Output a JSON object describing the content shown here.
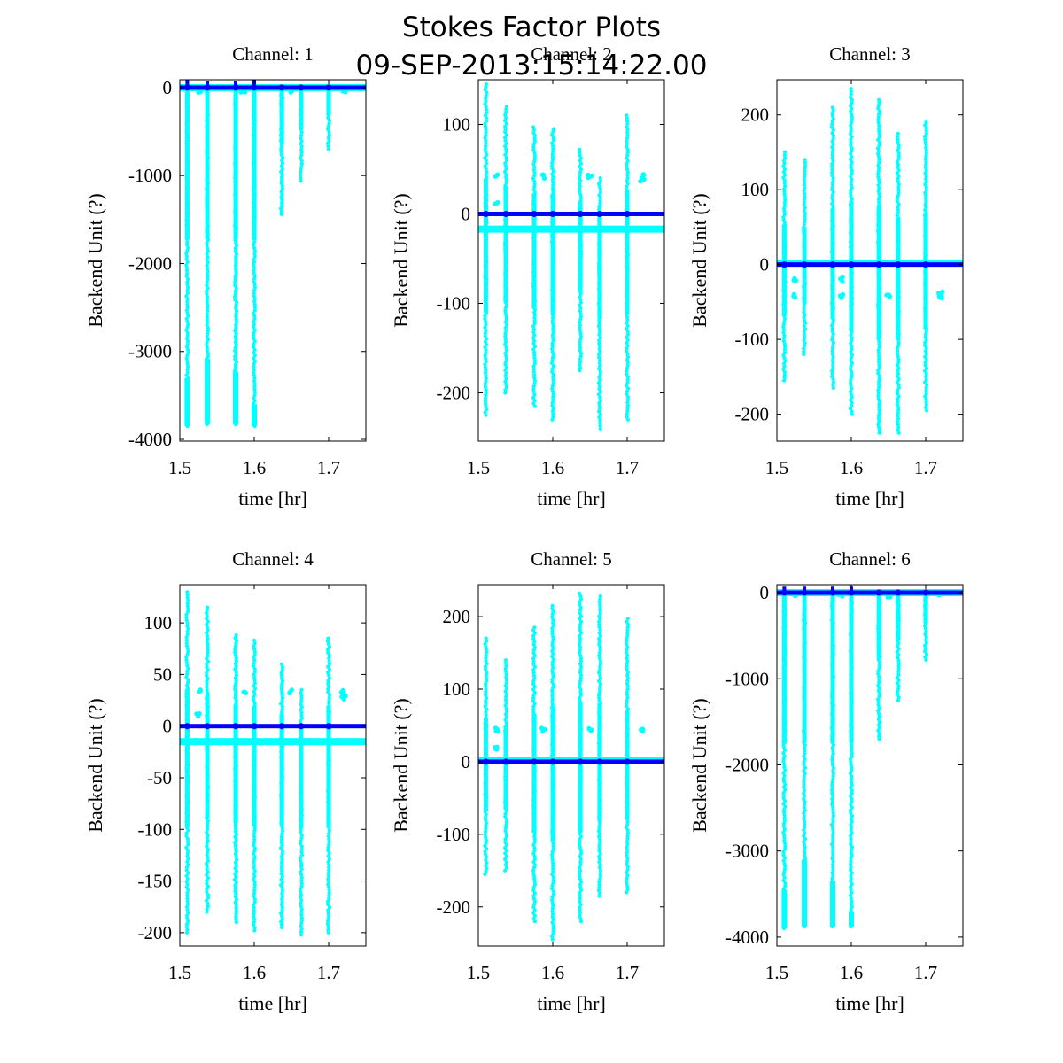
{
  "figure": {
    "title_line1": "Stokes Factor Plots",
    "title_line2": "09-SEP-2013:15:14:22.00",
    "colors": {
      "scatter_light": "#00ffff",
      "scatter_dark": "#0000ff",
      "axes": "#000000",
      "background": "#ffffff"
    }
  },
  "chart_data": [
    {
      "type": "scatter",
      "title": "Channel: 1",
      "xlabel": "time [hr]",
      "ylabel": "Backend Unit (?)",
      "xlim": [
        1.5,
        1.75
      ],
      "ylim": [
        -4020,
        90
      ],
      "xticks": [
        1.5,
        1.6,
        1.7
      ],
      "xtick_labels": [
        "1.5",
        "1.6",
        "1.7"
      ],
      "yticks": [
        0,
        -1000,
        -2000,
        -3000,
        -4000
      ],
      "ytick_labels": [
        "0",
        "-1000",
        "-2000",
        "-3000",
        "-4000"
      ],
      "grid": false,
      "series": [
        {
          "name": "cyan",
          "color": "#00ffff",
          "baseline": 0,
          "bursts": [
            [
              1.51,
              -3850,
              10
            ],
            [
              1.537,
              -3830,
              10
            ],
            [
              1.575,
              -3830,
              10
            ],
            [
              1.6,
              -3850,
              10
            ],
            [
              1.637,
              -1440,
              10
            ],
            [
              1.663,
              -1060,
              10
            ],
            [
              1.7,
              -700,
              10
            ]
          ],
          "dense_bands": [
            [
              1.51,
              -3300,
              -3850
            ],
            [
              1.537,
              -3080,
              -3830
            ],
            [
              1.575,
              -3230,
              -3830
            ],
            [
              1.6,
              -3600,
              -3850
            ]
          ],
          "clusters": [
            [
              1.525,
              -30
            ],
            [
              1.585,
              -30
            ],
            [
              1.65,
              -30
            ],
            [
              1.72,
              -30
            ]
          ]
        },
        {
          "name": "blue",
          "color": "#0000ff",
          "baseline": 0,
          "spikes": [
            [
              1.51,
              90
            ],
            [
              1.537,
              80
            ],
            [
              1.575,
              80
            ],
            [
              1.6,
              90
            ],
            [
              1.637,
              30
            ],
            [
              1.663,
              20
            ]
          ]
        }
      ]
    },
    {
      "type": "scatter",
      "title": "Channel: 2",
      "xlabel": "time [hr]",
      "ylabel": "Backend Unit (?)",
      "xlim": [
        1.5,
        1.75
      ],
      "ylim": [
        -254,
        150
      ],
      "xticks": [
        1.5,
        1.6,
        1.7
      ],
      "xtick_labels": [
        "1.5",
        "1.6",
        "1.7"
      ],
      "yticks": [
        100,
        0,
        -100,
        -200
      ],
      "ytick_labels": [
        "100",
        "0",
        "-100",
        "-200"
      ],
      "grid": false,
      "series": [
        {
          "name": "cyan",
          "color": "#00ffff",
          "baseline": -17,
          "bursts": [
            [
              1.51,
              -225,
              145
            ],
            [
              1.537,
              -200,
              120
            ],
            [
              1.575,
              -215,
              97
            ],
            [
              1.6,
              -230,
              95
            ],
            [
              1.637,
              -175,
              72
            ],
            [
              1.663,
              -240,
              40
            ],
            [
              1.7,
              -230,
              110
            ]
          ],
          "clusters": [
            [
              1.525,
              42
            ],
            [
              1.525,
              12
            ],
            [
              1.588,
              42
            ],
            [
              1.65,
              42
            ],
            [
              1.72,
              42
            ],
            [
              1.72,
              37
            ]
          ]
        },
        {
          "name": "blue",
          "color": "#0000ff",
          "baseline": 0,
          "spikes": []
        }
      ]
    },
    {
      "type": "scatter",
      "title": "Channel: 3",
      "xlabel": "time [hr]",
      "ylabel": "Backend Unit (?)",
      "xlim": [
        1.5,
        1.75
      ],
      "ylim": [
        -236,
        247
      ],
      "xticks": [
        1.5,
        1.6,
        1.7
      ],
      "xtick_labels": [
        "1.5",
        "1.6",
        "1.7"
      ],
      "yticks": [
        200,
        100,
        0,
        -100,
        -200
      ],
      "ytick_labels": [
        "200",
        "100",
        "0",
        "-100",
        "-200"
      ],
      "grid": false,
      "series": [
        {
          "name": "cyan",
          "color": "#00ffff",
          "baseline": 2,
          "bursts": [
            [
              1.51,
              -155,
              150
            ],
            [
              1.537,
              -120,
              140
            ],
            [
              1.575,
              -165,
              210
            ],
            [
              1.6,
              -200,
              235
            ],
            [
              1.637,
              -225,
              220
            ],
            [
              1.663,
              -225,
              175
            ],
            [
              1.7,
              -195,
              190
            ]
          ],
          "clusters": [
            [
              1.525,
              -20
            ],
            [
              1.525,
              -42
            ],
            [
              1.588,
              -20
            ],
            [
              1.588,
              -42
            ],
            [
              1.65,
              -40
            ],
            [
              1.72,
              -42
            ],
            [
              1.72,
              -38
            ]
          ]
        },
        {
          "name": "blue",
          "color": "#0000ff",
          "baseline": 0,
          "spikes": []
        }
      ]
    },
    {
      "type": "scatter",
      "title": "Channel: 4",
      "xlabel": "time [hr]",
      "ylabel": "Backend Unit (?)",
      "xlim": [
        1.5,
        1.75
      ],
      "ylim": [
        -213,
        137
      ],
      "xticks": [
        1.5,
        1.6,
        1.7
      ],
      "xtick_labels": [
        "1.5",
        "1.6",
        "1.7"
      ],
      "yticks": [
        100,
        50,
        0,
        -50,
        -100,
        -150,
        -200
      ],
      "ytick_labels": [
        "100",
        "50",
        "0",
        "-50",
        "-100",
        "-150",
        "-200"
      ],
      "grid": false,
      "series": [
        {
          "name": "cyan",
          "color": "#00ffff",
          "baseline": -15,
          "bursts": [
            [
              1.51,
              -200,
              130
            ],
            [
              1.537,
              -180,
              115
            ],
            [
              1.575,
              -190,
              88
            ],
            [
              1.6,
              -198,
              83
            ],
            [
              1.637,
              -195,
              60
            ],
            [
              1.663,
              -202,
              35
            ],
            [
              1.7,
              -200,
              85
            ]
          ],
          "clusters": [
            [
              1.525,
              33
            ],
            [
              1.525,
              10
            ],
            [
              1.588,
              33
            ],
            [
              1.65,
              33
            ],
            [
              1.72,
              33
            ],
            [
              1.72,
              28
            ]
          ]
        },
        {
          "name": "blue",
          "color": "#0000ff",
          "baseline": 0,
          "spikes": []
        }
      ]
    },
    {
      "type": "scatter",
      "title": "Channel: 5",
      "xlabel": "time [hr]",
      "ylabel": "Backend Unit (?)",
      "xlim": [
        1.5,
        1.75
      ],
      "ylim": [
        -254,
        244
      ],
      "xticks": [
        1.5,
        1.6,
        1.7
      ],
      "xtick_labels": [
        "1.5",
        "1.6",
        "1.7"
      ],
      "yticks": [
        200,
        100,
        0,
        -100,
        -200
      ],
      "ytick_labels": [
        "200",
        "100",
        "0",
        "-100",
        "-200"
      ],
      "grid": false,
      "series": [
        {
          "name": "cyan",
          "color": "#00ffff",
          "baseline": 2,
          "bursts": [
            [
              1.51,
              -155,
              170
            ],
            [
              1.537,
              -150,
              140
            ],
            [
              1.575,
              -220,
              185
            ],
            [
              1.6,
              -245,
              215
            ],
            [
              1.637,
              -220,
              232
            ],
            [
              1.663,
              -185,
              228
            ],
            [
              1.7,
              -180,
              197
            ]
          ],
          "clusters": [
            [
              1.525,
              45
            ],
            [
              1.525,
              20
            ],
            [
              1.588,
              45
            ],
            [
              1.65,
              45
            ],
            [
              1.72,
              45
            ],
            [
              1.72,
              42
            ]
          ]
        },
        {
          "name": "blue",
          "color": "#0000ff",
          "baseline": 0,
          "spikes": []
        }
      ]
    },
    {
      "type": "scatter",
      "title": "Channel: 6",
      "xlabel": "time [hr]",
      "ylabel": "Backend Unit (?)",
      "xlim": [
        1.5,
        1.75
      ],
      "ylim": [
        -4104,
        93
      ],
      "xticks": [
        1.5,
        1.6,
        1.7
      ],
      "xtick_labels": [
        "1.5",
        "1.6",
        "1.7"
      ],
      "yticks": [
        0,
        -1000,
        -2000,
        -3000,
        -4000
      ],
      "ytick_labels": [
        "0",
        "-1000",
        "-2000",
        "-3000",
        "-4000"
      ],
      "grid": false,
      "series": [
        {
          "name": "cyan",
          "color": "#00ffff",
          "baseline": 0,
          "bursts": [
            [
              1.51,
              -3900,
              10
            ],
            [
              1.537,
              -3880,
              10
            ],
            [
              1.575,
              -3880,
              10
            ],
            [
              1.6,
              -3880,
              10
            ],
            [
              1.637,
              -1700,
              10
            ],
            [
              1.663,
              -1250,
              10
            ],
            [
              1.7,
              -780,
              10
            ]
          ],
          "dense_bands": [
            [
              1.51,
              -3450,
              -3900
            ],
            [
              1.537,
              -3100,
              -3880
            ],
            [
              1.575,
              -3350,
              -3880
            ],
            [
              1.6,
              -3700,
              -3880
            ]
          ],
          "clusters": [
            [
              1.525,
              -30
            ],
            [
              1.585,
              -30
            ],
            [
              1.65,
              -30
            ],
            [
              1.72,
              -30
            ]
          ]
        },
        {
          "name": "blue",
          "color": "#0000ff",
          "baseline": 0,
          "spikes": [
            [
              1.51,
              70
            ],
            [
              1.537,
              70
            ],
            [
              1.575,
              70
            ],
            [
              1.6,
              70
            ],
            [
              1.637,
              30
            ],
            [
              1.663,
              20
            ]
          ]
        }
      ]
    }
  ]
}
